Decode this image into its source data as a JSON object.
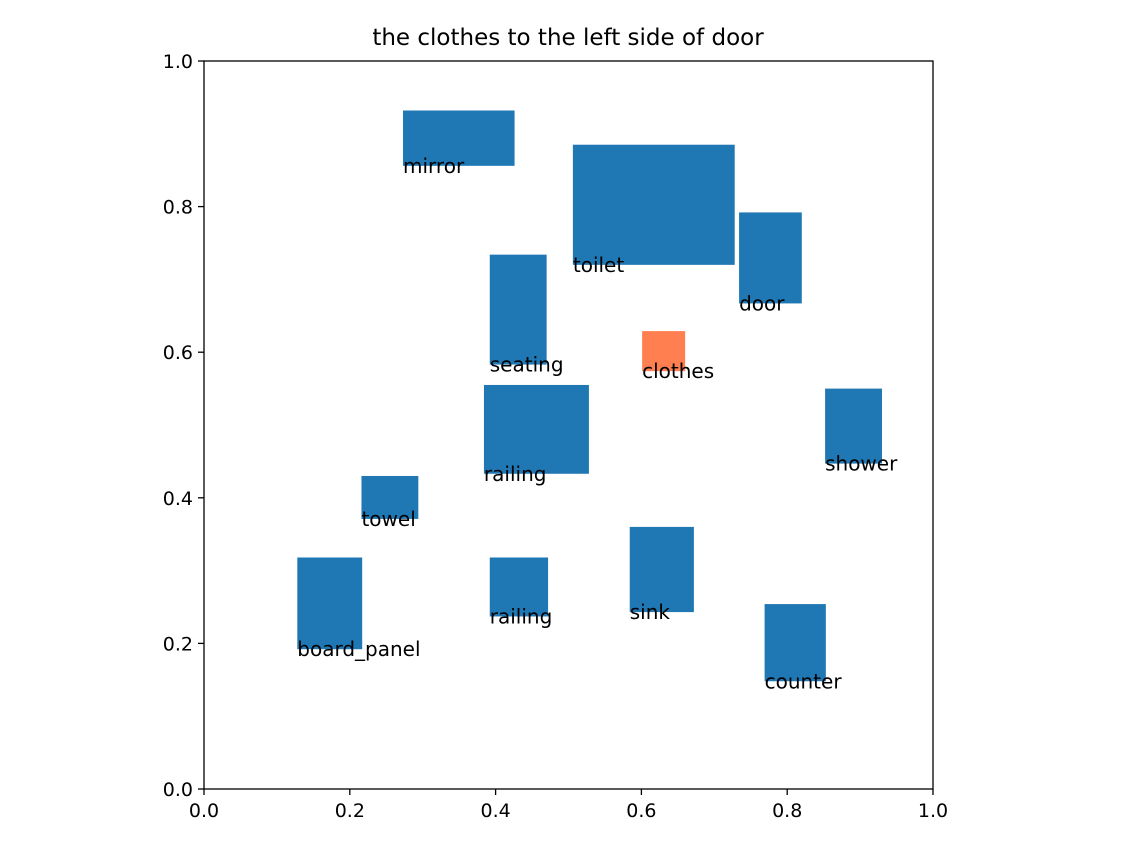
{
  "chart_data": {
    "type": "box-layout",
    "title": "the clothes to the left side of door",
    "xlabel": "",
    "ylabel": "",
    "xlim": [
      0.0,
      1.0
    ],
    "ylim": [
      0.0,
      1.0
    ],
    "xticks": [
      "0.0",
      "0.2",
      "0.4",
      "0.6",
      "0.8",
      "1.0"
    ],
    "yticks": [
      "0.0",
      "0.2",
      "0.4",
      "0.6",
      "0.8",
      "1.0"
    ],
    "grid": false,
    "colors": {
      "default": "#1f77b4",
      "highlight": "#ff7f50"
    },
    "boxes": [
      {
        "label": "mirror",
        "x0": 0.273,
        "y0": 0.856,
        "x1": 0.426,
        "y1": 0.932,
        "highlight": false
      },
      {
        "label": "toilet",
        "x0": 0.506,
        "y0": 0.72,
        "x1": 0.728,
        "y1": 0.885,
        "highlight": false
      },
      {
        "label": "door",
        "x0": 0.734,
        "y0": 0.667,
        "x1": 0.82,
        "y1": 0.792,
        "highlight": false
      },
      {
        "label": "seating",
        "x0": 0.392,
        "y0": 0.583,
        "x1": 0.47,
        "y1": 0.734,
        "highlight": false
      },
      {
        "label": "clothes",
        "x0": 0.601,
        "y0": 0.574,
        "x1": 0.66,
        "y1": 0.629,
        "highlight": true
      },
      {
        "label": "railing",
        "x0": 0.384,
        "y0": 0.433,
        "x1": 0.528,
        "y1": 0.555,
        "highlight": false
      },
      {
        "label": "shower",
        "x0": 0.852,
        "y0": 0.447,
        "x1": 0.93,
        "y1": 0.55,
        "highlight": false
      },
      {
        "label": "towel",
        "x0": 0.216,
        "y0": 0.371,
        "x1": 0.294,
        "y1": 0.43,
        "highlight": false
      },
      {
        "label": "sink",
        "x0": 0.584,
        "y0": 0.243,
        "x1": 0.672,
        "y1": 0.36,
        "highlight": false
      },
      {
        "label": "railing",
        "x0": 0.392,
        "y0": 0.237,
        "x1": 0.472,
        "y1": 0.318,
        "highlight": false
      },
      {
        "label": "board_panel",
        "x0": 0.128,
        "y0": 0.192,
        "x1": 0.217,
        "y1": 0.318,
        "highlight": false
      },
      {
        "label": "counter",
        "x0": 0.769,
        "y0": 0.148,
        "x1": 0.853,
        "y1": 0.254,
        "highlight": false
      }
    ]
  }
}
